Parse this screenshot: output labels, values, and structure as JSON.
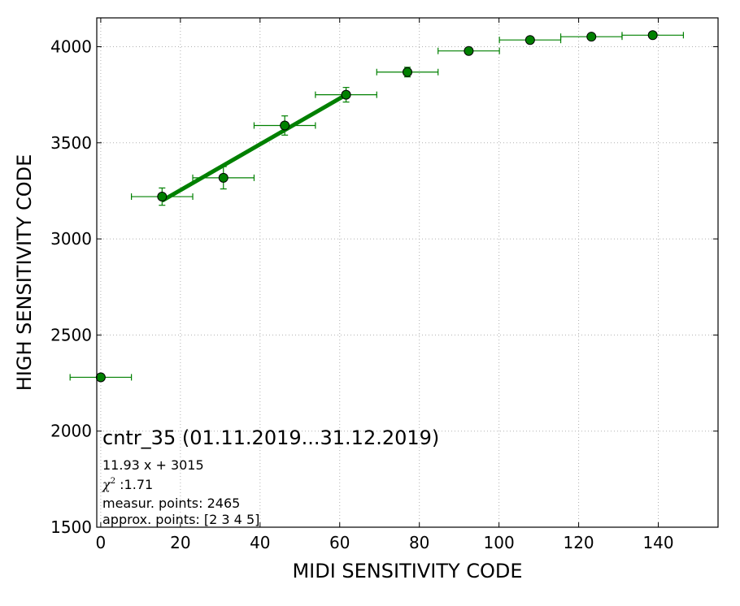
{
  "chart_data": {
    "type": "scatter",
    "title": "",
    "xlabel": "MIDI SENSITIVITY CODE",
    "ylabel": "HIGH SENSITIVITY CODE",
    "xlim": [
      -1,
      155
    ],
    "ylim": [
      1500,
      4150
    ],
    "grid": true,
    "xticks": [
      0,
      20,
      40,
      60,
      80,
      100,
      120,
      140
    ],
    "yticks": [
      1500,
      2000,
      2500,
      3000,
      3500,
      4000
    ],
    "colors": {
      "points": "#008000",
      "fit": "#008000",
      "edge": "#000000"
    },
    "points": [
      {
        "x": 0,
        "y": 2280,
        "xerr": 7.7,
        "yerr": 0
      },
      {
        "x": 15.4,
        "y": 3220,
        "xerr": 7.7,
        "yerr": 45
      },
      {
        "x": 30.8,
        "y": 3318,
        "xerr": 7.7,
        "yerr": 58
      },
      {
        "x": 46.2,
        "y": 3590,
        "xerr": 7.7,
        "yerr": 50
      },
      {
        "x": 61.6,
        "y": 3750,
        "xerr": 7.7,
        "yerr": 38
      },
      {
        "x": 77.0,
        "y": 3868,
        "xerr": 7.7,
        "yerr": 25
      },
      {
        "x": 92.4,
        "y": 3978,
        "xerr": 7.7,
        "yerr": 0
      },
      {
        "x": 107.8,
        "y": 4035,
        "xerr": 7.7,
        "yerr": 0
      },
      {
        "x": 123.2,
        "y": 4052,
        "xerr": 7.7,
        "yerr": 0
      },
      {
        "x": 138.6,
        "y": 4060,
        "xerr": 7.7,
        "yerr": 0
      }
    ],
    "fit": {
      "slope": 11.93,
      "intercept": 3015,
      "x_range": [
        15.4,
        61.6
      ]
    },
    "annotations": {
      "title": "cntr_35 (01.11.2019...31.12.2019)",
      "equation": "11.93 x + 3015",
      "chi_symbol": "χ",
      "chi_sup": "2",
      "chi_value": " :1.71",
      "measured": "measur. points: 2465",
      "approx": "approx. points: [2 3 4 5]"
    }
  }
}
